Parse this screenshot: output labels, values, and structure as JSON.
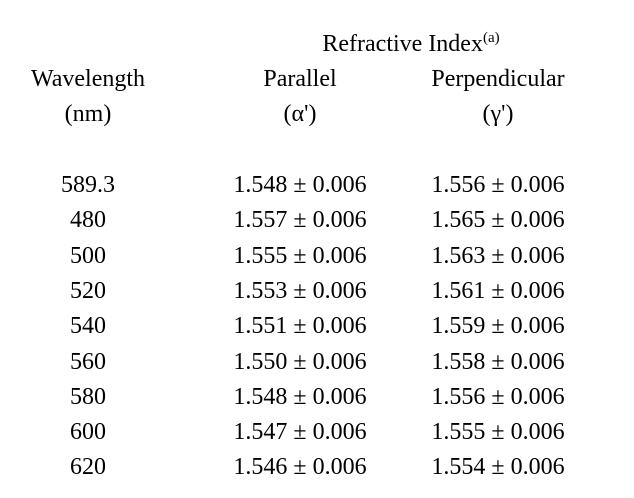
{
  "table": {
    "group_header": "Refractive Index",
    "group_header_note": "(a)",
    "col_wavelength": "Wavelength",
    "col_wavelength_unit": "(nm)",
    "col_parallel": "Parallel",
    "col_parallel_symbol": "(α')",
    "col_perpendicular": "Perpendicular",
    "col_perpendicular_symbol": "(γ')",
    "rows": [
      {
        "wavelength": "589.3",
        "parallel": "1.548 ± 0.006",
        "perpendicular": "1.556 ± 0.006"
      },
      {
        "wavelength": "480",
        "parallel": "1.557 ± 0.006",
        "perpendicular": "1.565 ± 0.006"
      },
      {
        "wavelength": "500",
        "parallel": "1.555 ± 0.006",
        "perpendicular": "1.563 ± 0.006"
      },
      {
        "wavelength": "520",
        "parallel": "1.553 ± 0.006",
        "perpendicular": "1.561 ± 0.006"
      },
      {
        "wavelength": "540",
        "parallel": "1.551 ± 0.006",
        "perpendicular": "1.559 ± 0.006"
      },
      {
        "wavelength": "560",
        "parallel": "1.550 ± 0.006",
        "perpendicular": "1.558 ± 0.006"
      },
      {
        "wavelength": "580",
        "parallel": "1.548 ± 0.006",
        "perpendicular": "1.556 ± 0.006"
      },
      {
        "wavelength": "600",
        "parallel": "1.547 ± 0.006",
        "perpendicular": "1.555 ± 0.006"
      },
      {
        "wavelength": "620",
        "parallel": "1.546 ± 0.006",
        "perpendicular": "1.554 ± 0.006"
      }
    ]
  }
}
